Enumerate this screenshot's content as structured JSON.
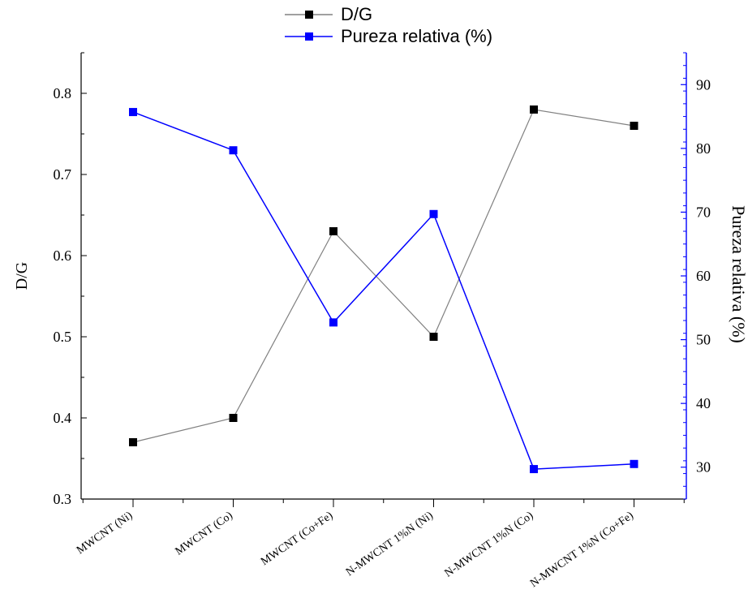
{
  "chart_data": {
    "type": "line",
    "title": "",
    "categories": [
      "MWCNT (Ni)",
      "MWCNT (Co)",
      "MWCNT (Co+Fe)",
      "N-MWCNT 1%N (Ni)",
      "N-MWCNT 1%N (Co)",
      "N-MWCNT 1%N (Co+Fe)"
    ],
    "y_left": {
      "label": "D/G",
      "range": [
        0.3,
        0.85
      ],
      "ticks": [
        0.3,
        0.4,
        0.5,
        0.6,
        0.7,
        0.8
      ],
      "tick_labels": [
        "0.3",
        "0.4",
        "0.5",
        "0.6",
        "0.7",
        "0.8"
      ]
    },
    "y_right": {
      "label": "Pureza relativa (%)",
      "range": [
        25,
        95
      ],
      "ticks": [
        30,
        40,
        50,
        60,
        70,
        80,
        90
      ],
      "tick_labels": [
        "30",
        "40",
        "50",
        "60",
        "70",
        "80",
        "90"
      ],
      "color": "#0000ff"
    },
    "series": [
      {
        "name": "D/G",
        "axis": "left",
        "color": "#000000",
        "line_color": "#808080",
        "values": [
          0.37,
          0.4,
          0.63,
          0.5,
          0.78,
          0.76
        ]
      },
      {
        "name": "Pureza relativa (%)",
        "axis": "right",
        "color": "#0000ff",
        "line_color": "#0000ff",
        "values": [
          85.7,
          79.7,
          52.7,
          69.7,
          29.7,
          30.5
        ]
      }
    ],
    "legend": "top-center",
    "grid": false
  }
}
